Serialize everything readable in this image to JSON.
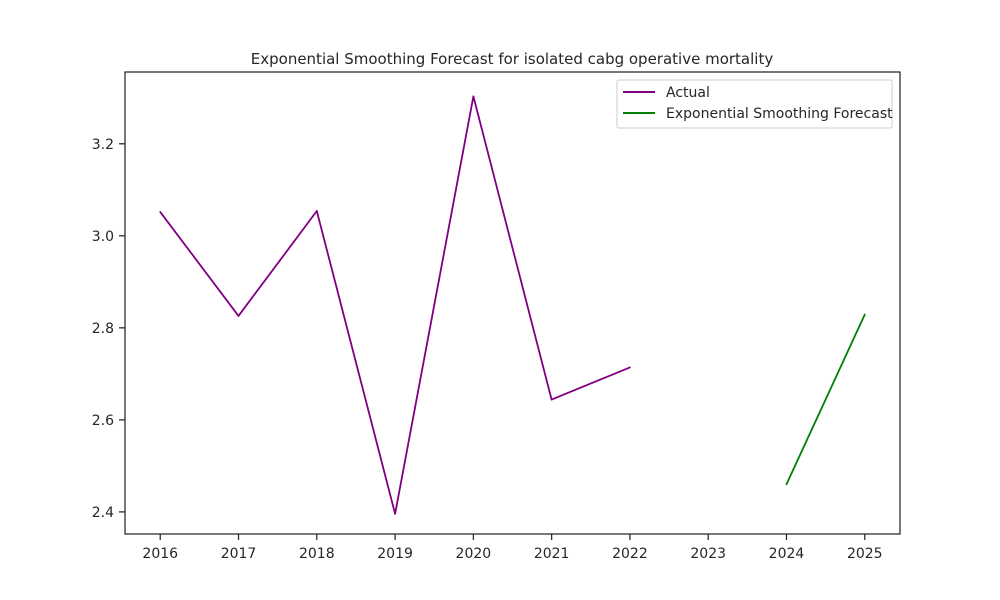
{
  "chart_data": {
    "type": "line",
    "title": "Exponential Smoothing Forecast for isolated cabg operative mortality",
    "xlabel": "",
    "ylabel": "",
    "x_ticks": [
      "2016",
      "2017",
      "2018",
      "2019",
      "2020",
      "2021",
      "2022",
      "2023",
      "2024",
      "2025"
    ],
    "y_ticks": [
      "2.4",
      "2.6",
      "2.8",
      "3.0",
      "3.2"
    ],
    "xlim": [
      2015.55,
      2025.45
    ],
    "ylim": [
      2.352,
      3.356
    ],
    "grid": false,
    "legend_position": "top-right",
    "series": [
      {
        "name": "Actual",
        "color": "#800080",
        "x": [
          2016,
          2017,
          2018,
          2019,
          2020,
          2021,
          2022
        ],
        "y": [
          3.052,
          2.826,
          3.054,
          2.396,
          3.303,
          2.644,
          2.714
        ]
      },
      {
        "name": "Exponential Smoothing Forecast",
        "color": "#008000",
        "x": [
          2024,
          2025
        ],
        "y": [
          2.46,
          2.829
        ]
      }
    ]
  }
}
